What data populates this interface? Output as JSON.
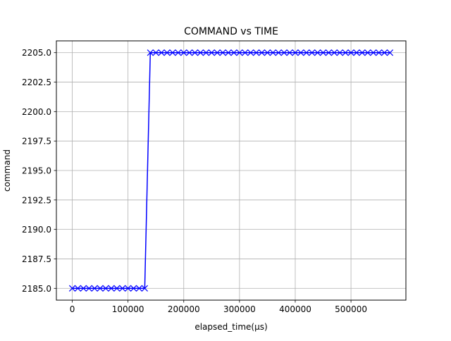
{
  "chart_data": {
    "type": "line",
    "title": "COMMAND vs TIME",
    "xlabel": "elapsed_time(µs)",
    "ylabel": "command",
    "xlim": [
      -28500,
      598500
    ],
    "ylim": [
      2184,
      2206
    ],
    "xticks": [
      0,
      100000,
      200000,
      300000,
      400000,
      500000
    ],
    "xtick_labels": [
      "0",
      "100000",
      "200000",
      "300000",
      "400000",
      "500000"
    ],
    "yticks": [
      2185.0,
      2187.5,
      2190.0,
      2192.5,
      2195.0,
      2197.5,
      2200.0,
      2202.5,
      2205.0
    ],
    "ytick_labels": [
      "2185.0",
      "2187.5",
      "2190.0",
      "2192.5",
      "2195.0",
      "2197.5",
      "2200.0",
      "2202.5",
      "2205.0"
    ],
    "grid": true,
    "line_color": "#0000ff",
    "marker": "x",
    "series": [
      {
        "x": [
          0,
          10000,
          20000,
          30000,
          40000,
          50000,
          60000,
          70000,
          80000,
          90000,
          100000,
          110000,
          120000,
          130000,
          140000,
          150000,
          160000,
          170000,
          180000,
          190000,
          200000,
          210000,
          220000,
          230000,
          240000,
          250000,
          260000,
          270000,
          280000,
          290000,
          300000,
          310000,
          320000,
          330000,
          340000,
          350000,
          360000,
          370000,
          380000,
          390000,
          400000,
          410000,
          420000,
          430000,
          440000,
          450000,
          460000,
          470000,
          480000,
          490000,
          500000,
          510000,
          520000,
          530000,
          540000,
          550000,
          560000,
          570000
        ],
        "values": [
          2185,
          2185,
          2185,
          2185,
          2185,
          2185,
          2185,
          2185,
          2185,
          2185,
          2185,
          2185,
          2185,
          2185,
          2205,
          2205,
          2205,
          2205,
          2205,
          2205,
          2205,
          2205,
          2205,
          2205,
          2205,
          2205,
          2205,
          2205,
          2205,
          2205,
          2205,
          2205,
          2205,
          2205,
          2205,
          2205,
          2205,
          2205,
          2205,
          2205,
          2205,
          2205,
          2205,
          2205,
          2205,
          2205,
          2205,
          2205,
          2205,
          2205,
          2205,
          2205,
          2205,
          2205,
          2205,
          2205,
          2205,
          2205
        ]
      }
    ]
  }
}
